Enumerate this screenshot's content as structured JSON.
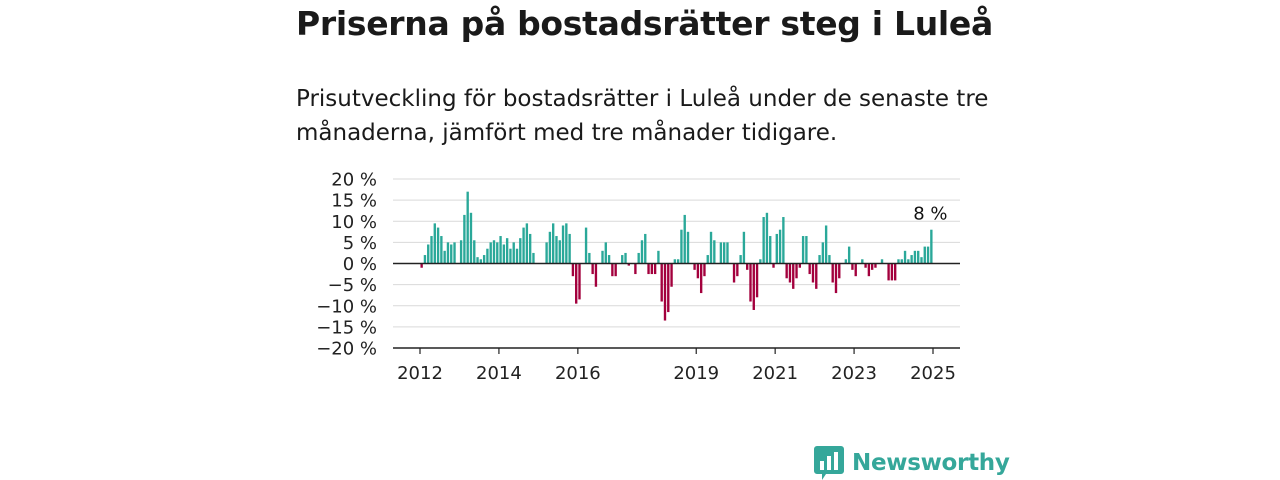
{
  "title": "Priserna på bostadsrätter steg i Luleå",
  "subtitle": "Prisutveckling för bostadsrätter i Luleå under de senaste tre månaderna, jämfört med tre månader tidigare.",
  "brand": {
    "name": "Newsworthy",
    "color": "#35a79a"
  },
  "chart_data": {
    "type": "bar",
    "title": "",
    "xlabel": "",
    "ylabel": "",
    "ylim": [
      -20,
      20
    ],
    "y_ticks": [
      20,
      15,
      10,
      5,
      0,
      -5,
      -10,
      -15,
      -20
    ],
    "y_tick_labels": [
      "20 %",
      "15 %",
      "10 %",
      "5 %",
      "0 %",
      "−5 %",
      "−10 %",
      "−15 %",
      "−20 %"
    ],
    "x_tick_labels": [
      "2012",
      "2014",
      "2016",
      "2019",
      "2021",
      "2023",
      "2025"
    ],
    "grid": true,
    "colors": {
      "positive": "#2aa899",
      "negative": "#a3003d"
    },
    "annotation": "8 %",
    "start": "2012-01",
    "values": [
      -1,
      2,
      4.5,
      6.5,
      9.5,
      8.5,
      6.5,
      3,
      5,
      4.5,
      5,
      0,
      5.5,
      11.5,
      17,
      12,
      5.5,
      1.5,
      1,
      2,
      3.5,
      5,
      5.5,
      5,
      6.5,
      4.5,
      6,
      3.5,
      5,
      3.5,
      6,
      8.5,
      9.5,
      7,
      2.5,
      0,
      0,
      0,
      5,
      7.5,
      9.5,
      6.5,
      5.5,
      9,
      9.5,
      7,
      -3,
      -9.5,
      -8.5,
      0,
      8.5,
      2.5,
      -2.5,
      -5.5,
      0,
      3,
      5,
      2,
      -3,
      -3,
      0,
      2,
      2.5,
      -0.5,
      0,
      -2.5,
      2.5,
      5.5,
      7,
      -2.5,
      -2.5,
      -2.5,
      3,
      -9,
      -13.5,
      -11.5,
      -5.5,
      1,
      1,
      8,
      11.5,
      7.5,
      0,
      -1.5,
      -3.5,
      -7,
      -3,
      2,
      7.5,
      5.5,
      0,
      5,
      5,
      5,
      0,
      -4.5,
      -3,
      2,
      7.5,
      -1.5,
      -9,
      -11,
      -8,
      1,
      11,
      12,
      6.5,
      -1,
      7,
      8,
      11,
      -3.5,
      -4.5,
      -6,
      -3.5,
      -1,
      6.5,
      6.5,
      -2.5,
      -4.5,
      -6,
      2,
      5,
      9,
      2,
      -4.5,
      -7,
      -3.5,
      0,
      1,
      4,
      -1.5,
      -3,
      0,
      1,
      -1,
      -3,
      -1.5,
      -1,
      0,
      1,
      0,
      -4,
      -4,
      -4,
      1,
      1,
      3,
      1,
      2,
      3,
      3,
      1.5,
      4,
      4,
      8
    ]
  }
}
